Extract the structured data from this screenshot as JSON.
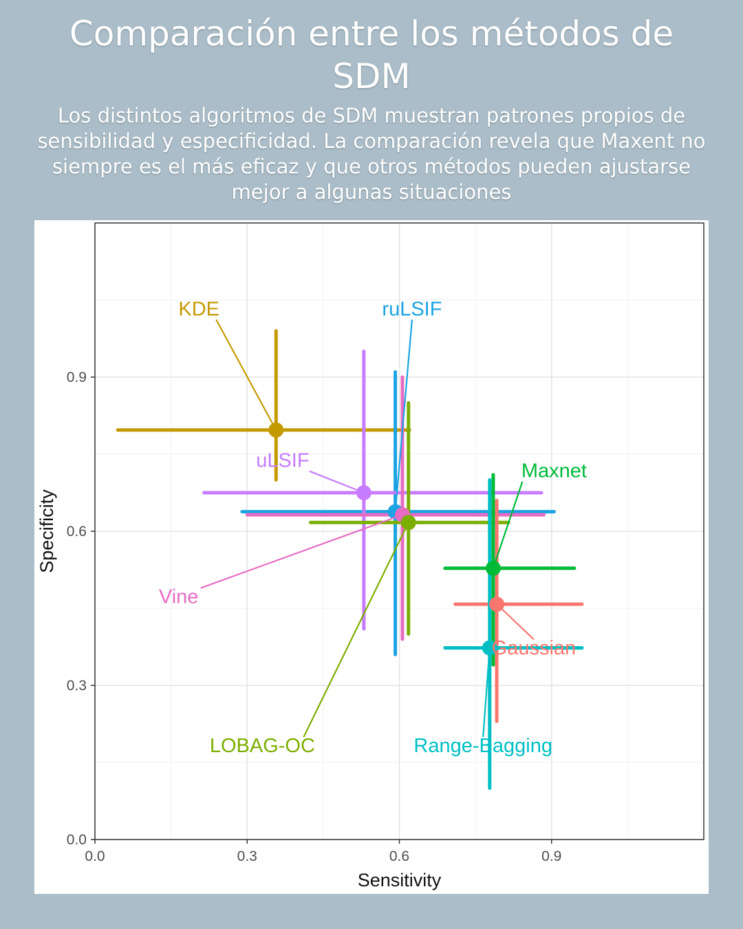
{
  "header": {
    "title": "Comparación entre los métodos de SDM",
    "subtitle": "Los distintos algoritmos de SDM muestran patrones propios de sensibilidad y especificidad. La comparación revela que Maxent no siempre es el más eficaz y que otros métodos pueden ajustarse mejor a algunas situaciones"
  },
  "chart_data": {
    "type": "scatter",
    "xlabel": "Sensitivity",
    "ylabel": "Specificity",
    "xlim": [
      0.0,
      1.2
    ],
    "ylim": [
      0.0,
      1.2
    ],
    "xticks": [
      "0.0",
      "0.3",
      "0.6",
      "0.9"
    ],
    "yticks": [
      "0.0",
      "0.3",
      "0.6",
      "0.9"
    ],
    "grid": true,
    "error_bars": true,
    "series": [
      {
        "name": "KDE",
        "color": "#c49a00",
        "x": 0.357,
        "y": 0.797,
        "x_range": [
          0.045,
          0.62
        ],
        "y_range": [
          0.7,
          0.99
        ],
        "label_pos": [
          0.205,
          1.02
        ]
      },
      {
        "name": "ruLSIF",
        "color": "#1ba3e3",
        "x": 0.592,
        "y": 0.638,
        "x_range": [
          0.29,
          0.905
        ],
        "y_range": [
          0.36,
          0.91
        ],
        "label_pos": [
          0.625,
          1.02
        ]
      },
      {
        "name": "uLSIF",
        "color": "#c77cff",
        "x": 0.53,
        "y": 0.675,
        "x_range": [
          0.215,
          0.88
        ],
        "y_range": [
          0.41,
          0.95
        ],
        "label_pos": [
          0.37,
          0.725
        ]
      },
      {
        "name": "Vine",
        "color": "#e76bc3",
        "x": 0.606,
        "y": 0.632,
        "x_range": [
          0.3,
          0.885
        ],
        "y_range": [
          0.39,
          0.9
        ],
        "label_pos": [
          0.165,
          0.46
        ]
      },
      {
        "name": "LOBAG-OC",
        "color": "#7cae00",
        "x": 0.618,
        "y": 0.617,
        "x_range": [
          0.425,
          0.815
        ],
        "y_range": [
          0.4,
          0.85
        ],
        "label_pos": [
          0.33,
          0.17
        ]
      },
      {
        "name": "Maxnet",
        "color": "#00ba38",
        "x": 0.785,
        "y": 0.528,
        "x_range": [
          0.69,
          0.945
        ],
        "y_range": [
          0.34,
          0.71
        ],
        "label_pos": [
          0.905,
          0.705
        ]
      },
      {
        "name": "Gaussian",
        "color": "#f8766d",
        "x": 0.792,
        "y": 0.458,
        "x_range": [
          0.71,
          0.96
        ],
        "y_range": [
          0.23,
          0.66
        ],
        "label_pos": [
          0.865,
          0.36
        ]
      },
      {
        "name": "Range-Bagging",
        "color": "#00bfc4",
        "x": 0.778,
        "y": 0.373,
        "x_range": [
          0.69,
          0.96
        ],
        "y_range": [
          0.1,
          0.7
        ],
        "label_pos": [
          0.765,
          0.17
        ]
      }
    ]
  }
}
